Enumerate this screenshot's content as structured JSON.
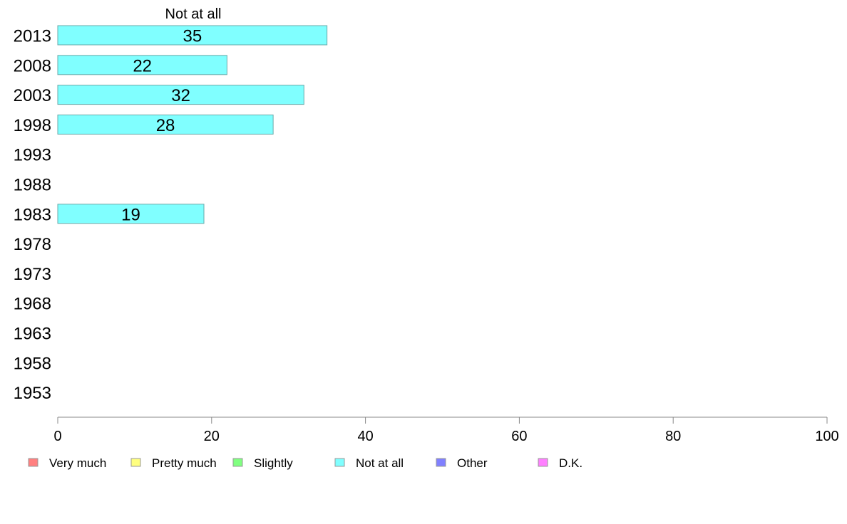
{
  "chart_data": {
    "type": "bar",
    "orientation": "horizontal",
    "panel_title": "Not at all",
    "categories": [
      "2013",
      "2008",
      "2003",
      "1998",
      "1993",
      "1988",
      "1983",
      "1978",
      "1973",
      "1968",
      "1963",
      "1958",
      "1953"
    ],
    "series": [
      {
        "name": "Not at all",
        "color": "#80ffff",
        "values": [
          35,
          22,
          32,
          28,
          null,
          null,
          19,
          null,
          null,
          null,
          null,
          null,
          null
        ]
      }
    ],
    "data_labels": [
      "35",
      "22",
      "32",
      "28",
      "",
      "",
      "19",
      "",
      "",
      "",
      "",
      "",
      ""
    ],
    "xlim": [
      0,
      100
    ],
    "xticks": [
      0,
      20,
      40,
      60,
      80,
      100
    ],
    "grid": false,
    "legend": {
      "placement": "bottom",
      "entries": [
        {
          "label": "Very much",
          "color": "#ff8080"
        },
        {
          "label": "Pretty much",
          "color": "#ffff80"
        },
        {
          "label": "Slightly",
          "color": "#80ff80"
        },
        {
          "label": "Not at all",
          "color": "#80ffff"
        },
        {
          "label": "Other",
          "color": "#8080ff"
        },
        {
          "label": "D.K.",
          "color": "#ff80ff"
        }
      ]
    }
  }
}
